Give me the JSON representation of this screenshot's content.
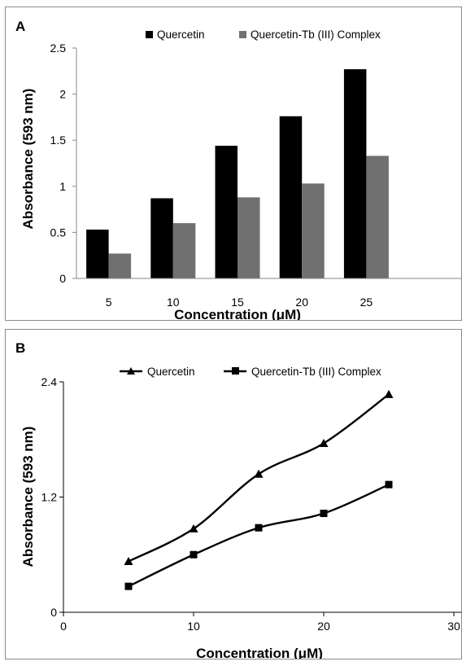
{
  "chart_data": [
    {
      "panel": "A",
      "type": "bar",
      "title": "",
      "xlabel": "Concentration (μM)",
      "ylabel": "Absorbance (593 nm)",
      "categories": [
        "5",
        "10",
        "15",
        "20",
        "25"
      ],
      "series": [
        {
          "name": "Quercetin",
          "color": "#000000",
          "values": [
            0.53,
            0.87,
            1.44,
            1.76,
            2.27
          ]
        },
        {
          "name": "Quercetin-Tb (III) Complex",
          "color": "#707070",
          "values": [
            0.27,
            0.6,
            0.88,
            1.03,
            1.33
          ]
        }
      ],
      "ylim": [
        0,
        2.5
      ],
      "yticks": [
        "0",
        "0.5",
        "1",
        "1.5",
        "2",
        "2.5"
      ],
      "grid": false,
      "legend_position": "top"
    },
    {
      "panel": "B",
      "type": "line",
      "title": "",
      "xlabel": "Concentration (μM)",
      "ylabel": "Absorbance (593 nm)",
      "x": [
        5,
        10,
        15,
        20,
        25
      ],
      "series": [
        {
          "name": "Quercetin",
          "marker": "triangle",
          "values": [
            0.53,
            0.87,
            1.44,
            1.76,
            2.27
          ]
        },
        {
          "name": "Quercetin-Tb (III) Complex",
          "marker": "square",
          "values": [
            0.27,
            0.6,
            0.88,
            1.03,
            1.33
          ]
        }
      ],
      "xlim": [
        0,
        30
      ],
      "ylim": [
        0,
        2.4
      ],
      "xticks": [
        "0",
        "10",
        "20",
        "30"
      ],
      "yticks": [
        "0",
        "1.2",
        "2.4"
      ],
      "grid": false,
      "legend_position": "top"
    }
  ]
}
